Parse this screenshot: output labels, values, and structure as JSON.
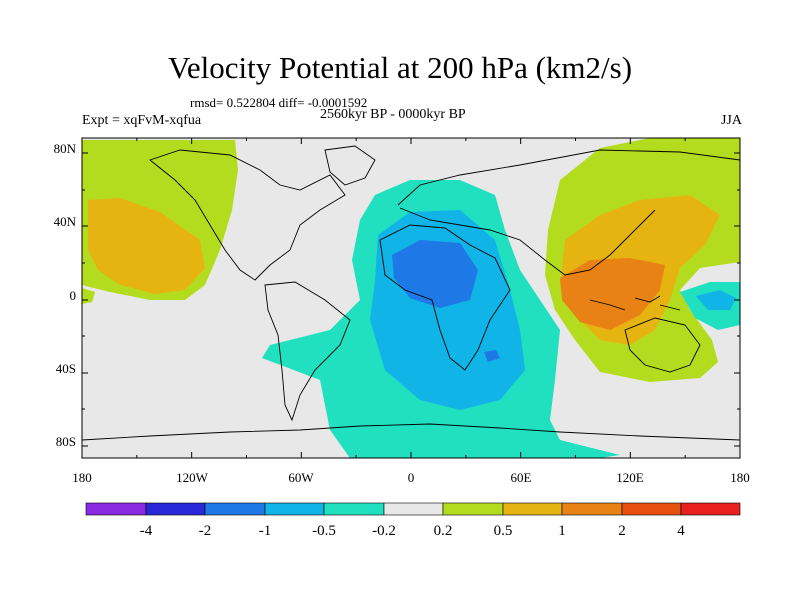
{
  "title": "Velocity Potential at 200 hPa (km2/s)",
  "stats": "rmsd= 0.522804  diff= -0.0001592",
  "left_label": "Expt = xqFvM-xqfua",
  "center_label": "2560kyr BP - 0000kyr BP",
  "right_label": "JJA",
  "x_ticks": [
    "180",
    "120W",
    "60W",
    "0",
    "60E",
    "120E",
    "180"
  ],
  "y_ticks": [
    "80N",
    "40N",
    "0",
    "40S",
    "80S"
  ],
  "colorbar": {
    "labels": [
      "-4",
      "-2",
      "-1",
      "-0.5",
      "-0.2",
      "0.2",
      "0.5",
      "1",
      "2",
      "4"
    ],
    "colors": [
      "#8a2be2",
      "#2828d8",
      "#1e78e6",
      "#10b4e6",
      "#20e0c0",
      "#e8e8e8",
      "#b4dc1e",
      "#e6b410",
      "#e88214",
      "#e85010",
      "#e82020"
    ]
  },
  "colors": {
    "ocean": "#e8e8e8",
    "neg_weak": "#20e0c0",
    "neg_mod": "#10b4e6",
    "neg_strong": "#1e78e6",
    "pos_weak": "#b4dc1e",
    "pos_mod": "#e6b410",
    "pos_strong": "#e88214"
  }
}
